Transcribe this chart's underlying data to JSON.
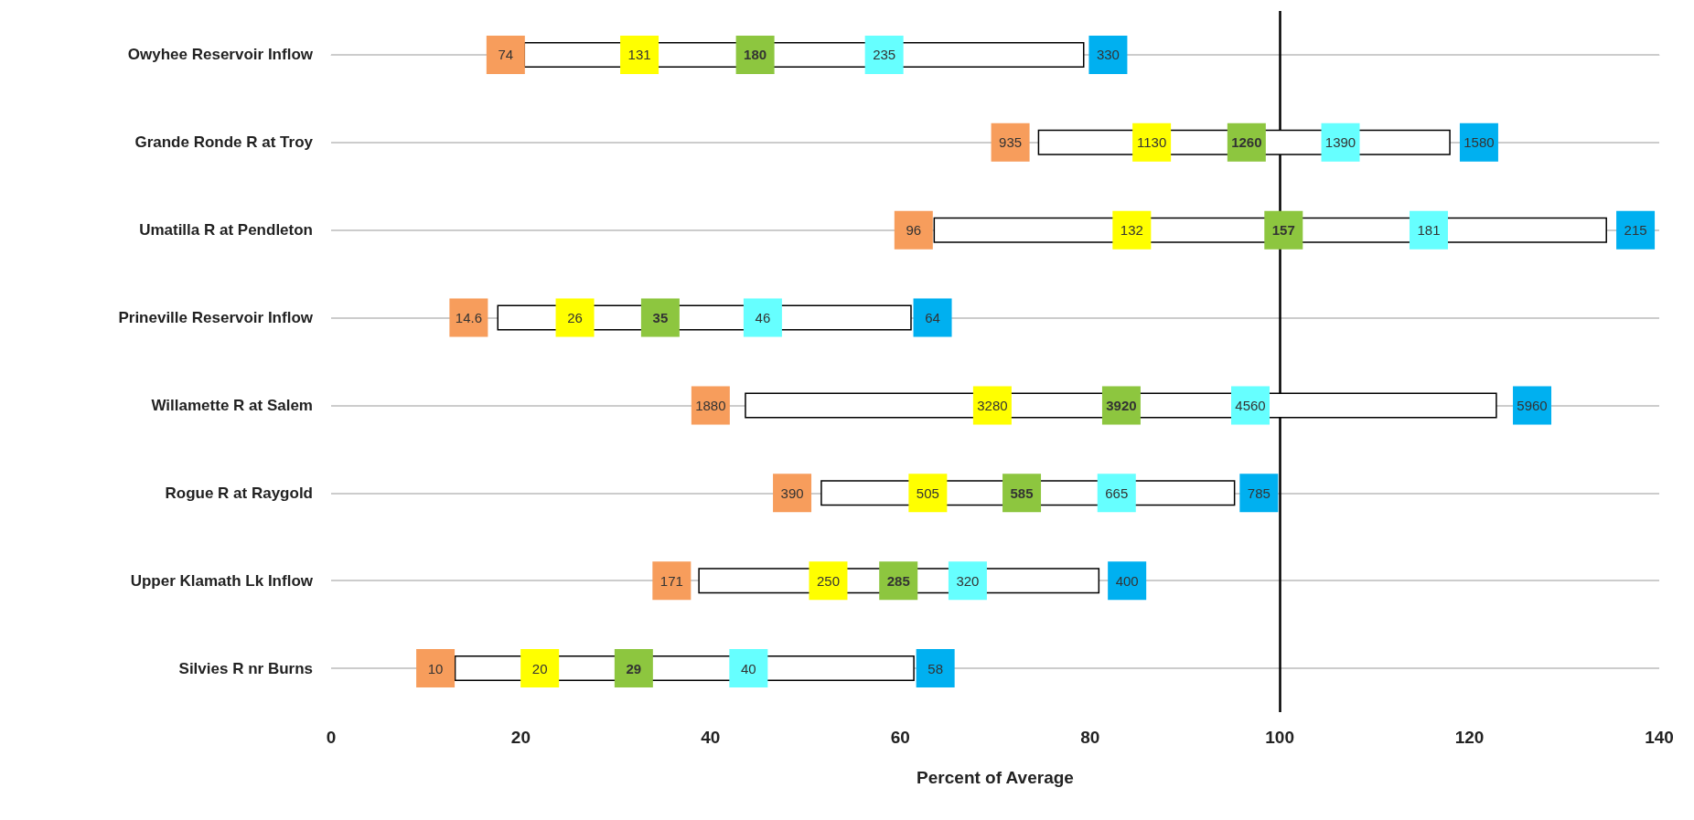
{
  "chart_data": {
    "type": "bar",
    "orientation": "horizontal",
    "xlabel": "Percent of Average",
    "categories": [
      "Owyhee Reservoir Inflow",
      "Grande Ronde R at Troy",
      "Umatilla R at Pendleton",
      "Prineville Reservoir Inflow",
      "Willamette R at Salem",
      "Rogue R at Raygold",
      "Upper Klamath Lk Inflow",
      "Silvies R nr Burns"
    ],
    "xlim": [
      0,
      140
    ],
    "xticks": [
      0,
      20,
      40,
      60,
      80,
      100,
      120,
      140
    ],
    "grid": "y",
    "marker": "square",
    "ref_lines": [
      {
        "axis": "x",
        "value": 100,
        "color": "#000000"
      }
    ],
    "series": [
      {
        "type": "bar",
        "color": "#ffffff",
        "base": [
          20.3,
          74.5,
          63.5,
          17.5,
          43.6,
          51.6,
          38.7,
          13
        ],
        "values": [
          59.1,
          43.5,
          71,
          43.7,
          79.3,
          43.7,
          42.3,
          48.5
        ]
      },
      {
        "type": "scatter",
        "color": "#f79d5c",
        "values": [
          18.4,
          71.6,
          61.4,
          14.5,
          40,
          48.6,
          35.9,
          11
        ]
      },
      {
        "type": "scatter",
        "color": "#ffff00",
        "values": [
          32.5,
          86.5,
          84.4,
          25.7,
          69.7,
          62.9,
          52.4,
          22
        ]
      },
      {
        "type": "scatter",
        "color": "#8dc63f",
        "values": [
          44.7,
          96.5,
          100.4,
          34.7,
          83.3,
          72.8,
          59.8,
          31.9
        ]
      },
      {
        "type": "scatter",
        "color": "#66ffff",
        "values": [
          58.3,
          106.4,
          115.7,
          45.5,
          96.9,
          82.8,
          67.1,
          44
        ]
      },
      {
        "type": "scatter",
        "color": "#00b0f0",
        "values": [
          81.9,
          121,
          137.5,
          63.4,
          126.6,
          97.8,
          83.9,
          63.7
        ]
      }
    ],
    "annotations": [
      {
        "text": "74",
        "x": 18.4,
        "y": "Owyhee Reservoir Inflow"
      },
      {
        "text": "131",
        "x": 32.5,
        "y": "Owyhee Reservoir Inflow"
      },
      {
        "text": "180",
        "x": 44.7,
        "y": "Owyhee Reservoir Inflow"
      },
      {
        "text": "235",
        "x": 58.3,
        "y": "Owyhee Reservoir Inflow"
      },
      {
        "text": "330",
        "x": 81.9,
        "y": "Owyhee Reservoir Inflow"
      },
      {
        "text": "935",
        "x": 71.6,
        "y": "Grande Ronde R at Troy"
      },
      {
        "text": "1130",
        "x": 86.5,
        "y": "Grande Ronde R at Troy"
      },
      {
        "text": "1260",
        "x": 96.5,
        "y": "Grande Ronde R at Troy"
      },
      {
        "text": "1390",
        "x": 106.4,
        "y": "Grande Ronde R at Troy"
      },
      {
        "text": "1580",
        "x": 121,
        "y": "Grande Ronde R at Troy"
      },
      {
        "text": "96",
        "x": 61.4,
        "y": "Umatilla R at Pendleton"
      },
      {
        "text": "132",
        "x": 84.4,
        "y": "Umatilla R at Pendleton"
      },
      {
        "text": "157",
        "x": 100.4,
        "y": "Umatilla R at Pendleton"
      },
      {
        "text": "181",
        "x": 115.7,
        "y": "Umatilla R at Pendleton"
      },
      {
        "text": "215",
        "x": 137.5,
        "y": "Umatilla R at Pendleton"
      },
      {
        "text": "14.6",
        "x": 14.5,
        "y": "Prineville Reservoir Inflow"
      },
      {
        "text": "26",
        "x": 25.7,
        "y": "Prineville Reservoir Inflow"
      },
      {
        "text": "35",
        "x": 34.7,
        "y": "Prineville Reservoir Inflow"
      },
      {
        "text": "46",
        "x": 45.5,
        "y": "Prineville Reservoir Inflow"
      },
      {
        "text": "64",
        "x": 63.4,
        "y": "Prineville Reservoir Inflow"
      },
      {
        "text": "1880",
        "x": 40,
        "y": "Willamette R at Salem"
      },
      {
        "text": "3280",
        "x": 69.7,
        "y": "Willamette R at Salem"
      },
      {
        "text": "3920",
        "x": 83.3,
        "y": "Willamette R at Salem"
      },
      {
        "text": "4560",
        "x": 96.9,
        "y": "Willamette R at Salem"
      },
      {
        "text": "5960",
        "x": 126.6,
        "y": "Willamette R at Salem"
      },
      {
        "text": "390",
        "x": 48.6,
        "y": "Rogue R at Raygold"
      },
      {
        "text": "505",
        "x": 62.9,
        "y": "Rogue R at Raygold"
      },
      {
        "text": "585",
        "x": 72.8,
        "y": "Rogue R at Raygold"
      },
      {
        "text": "665",
        "x": 82.8,
        "y": "Rogue R at Raygold"
      },
      {
        "text": "785",
        "x": 97.8,
        "y": "Rogue R at Raygold"
      },
      {
        "text": "171",
        "x": 35.9,
        "y": "Upper Klamath Lk Inflow"
      },
      {
        "text": "250",
        "x": 52.4,
        "y": "Upper Klamath Lk Inflow"
      },
      {
        "text": "285",
        "x": 59.8,
        "y": "Upper Klamath Lk Inflow"
      },
      {
        "text": "320",
        "x": 67.1,
        "y": "Upper Klamath Lk Inflow"
      },
      {
        "text": "400",
        "x": 83.9,
        "y": "Upper Klamath Lk Inflow"
      },
      {
        "text": "10",
        "x": 11,
        "y": "Silvies R nr Burns"
      },
      {
        "text": "20",
        "x": 22,
        "y": "Silvies R nr Burns"
      },
      {
        "text": "29",
        "x": 31.9,
        "y": "Silvies R nr Burns"
      },
      {
        "text": "40",
        "x": 44,
        "y": "Silvies R nr Burns"
      },
      {
        "text": "58",
        "x": 63.7,
        "y": "Silvies R nr Burns"
      }
    ]
  }
}
